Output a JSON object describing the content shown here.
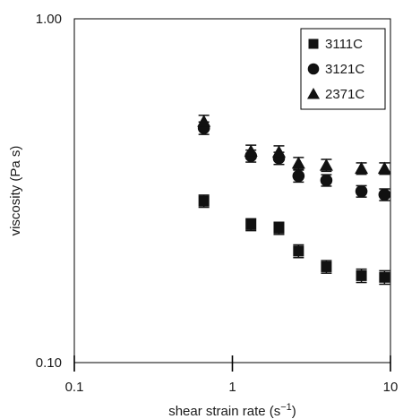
{
  "chart_data": {
    "type": "scatter",
    "xlabel": "shear strain rate (s",
    "xlabel_sup": "−1",
    "xlabel_end": ")",
    "ylabel": "viscosity (Pa s)",
    "x_scale": "log",
    "y_scale": "log",
    "xlim": [
      0.1,
      10
    ],
    "ylim": [
      0.1,
      1.0
    ],
    "x_tick_values": [
      0.1,
      1,
      10
    ],
    "x_tick_labels": [
      "0.1",
      "1",
      "10"
    ],
    "y_tick_values": [
      0.1,
      1.0
    ],
    "y_tick_labels": [
      "0.10",
      "1.00"
    ],
    "grid": false,
    "legend_position": "top-right",
    "series": [
      {
        "name": "3111C",
        "marker": "square",
        "x": [
          0.66,
          1.31,
          1.97,
          2.62,
          3.93,
          6.55,
          9.17
        ],
        "y": [
          0.295,
          0.252,
          0.246,
          0.211,
          0.19,
          0.179,
          0.177
        ],
        "err": [
          0.012,
          0.01,
          0.01,
          0.009,
          0.008,
          0.008,
          0.008
        ]
      },
      {
        "name": "3121C",
        "marker": "circle",
        "x": [
          0.66,
          1.31,
          1.97,
          2.62,
          3.93,
          6.55,
          9.17
        ],
        "y": [
          0.481,
          0.399,
          0.393,
          0.349,
          0.339,
          0.315,
          0.308
        ],
        "err": [
          0.02,
          0.016,
          0.016,
          0.014,
          0.013,
          0.012,
          0.012
        ]
      },
      {
        "name": "2371C",
        "marker": "triangle",
        "x": [
          0.66,
          1.31,
          1.97,
          2.62,
          3.93,
          6.55,
          9.17
        ],
        "y": [
          0.503,
          0.412,
          0.41,
          0.38,
          0.375,
          0.367,
          0.367
        ],
        "err": [
          0.021,
          0.017,
          0.017,
          0.015,
          0.015,
          0.014,
          0.014
        ]
      }
    ]
  }
}
